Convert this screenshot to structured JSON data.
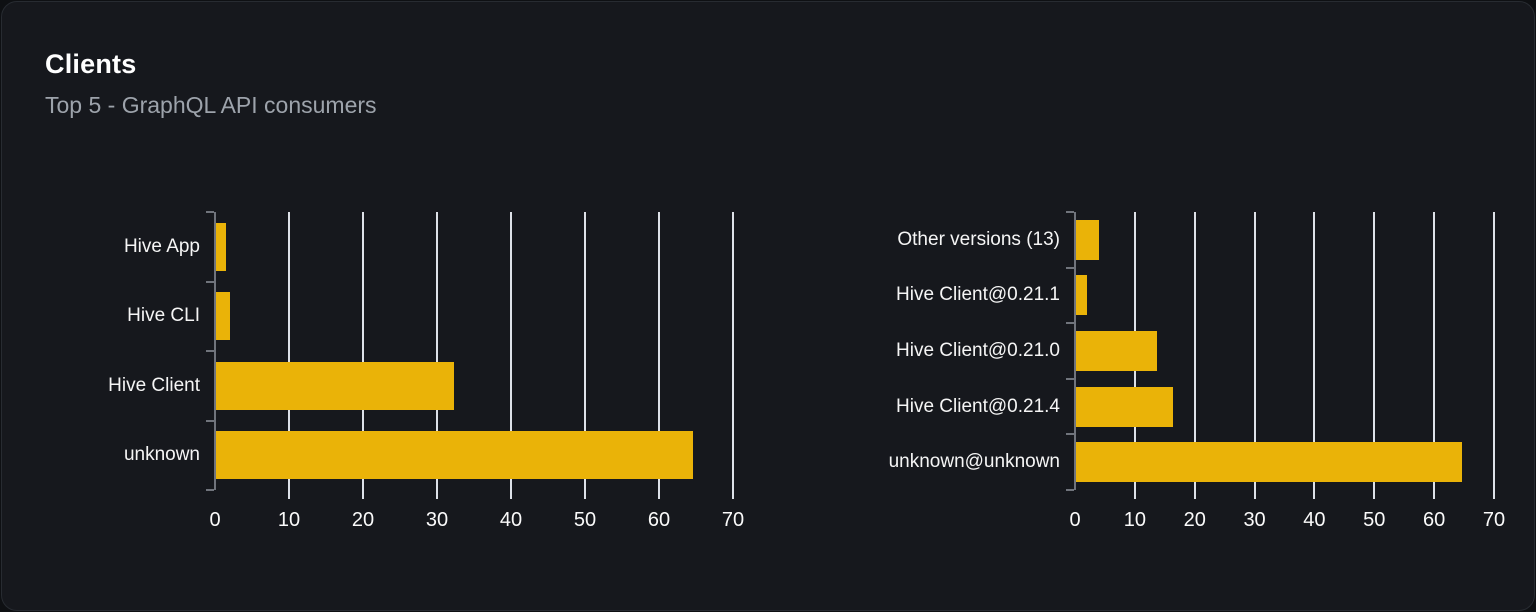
{
  "header": {
    "title": "Clients",
    "subtitle": "Top 5 - GraphQL API consumers"
  },
  "colors": {
    "bar": "#eab308",
    "gridline": "#dde1e8",
    "axis": "#70747c",
    "card_background": "#16181d",
    "page_background": "#0e1013",
    "title_text": "#ffffff",
    "subtitle_text": "#9da3ab",
    "label_text": "#f5f5f5"
  },
  "chart_data": [
    {
      "type": "bar",
      "orientation": "horizontal",
      "name": "clients",
      "title": "",
      "categories": [
        "Hive App",
        "Hive CLI",
        "Hive Client",
        "unknown"
      ],
      "values": [
        1.4,
        1.9,
        32.2,
        64.5
      ],
      "xlabel": "",
      "ylabel": "",
      "xlim": [
        0,
        70
      ],
      "xticks": [
        0,
        10,
        20,
        30,
        40,
        50,
        60,
        70
      ],
      "grid": true,
      "legend": false,
      "bar_color": "#eab308"
    },
    {
      "type": "bar",
      "orientation": "horizontal",
      "name": "client-versions",
      "title": "",
      "categories": [
        "Other versions (13)",
        "Hive Client@0.21.1",
        "Hive Client@0.21.0",
        "Hive Client@0.21.4",
        "unknown@unknown"
      ],
      "values": [
        3.9,
        1.8,
        13.6,
        16.2,
        64.5
      ],
      "xlabel": "",
      "ylabel": "",
      "xlim": [
        0,
        70
      ],
      "xticks": [
        0,
        10,
        20,
        30,
        40,
        50,
        60,
        70
      ],
      "grid": true,
      "legend": false,
      "bar_color": "#eab308"
    }
  ]
}
